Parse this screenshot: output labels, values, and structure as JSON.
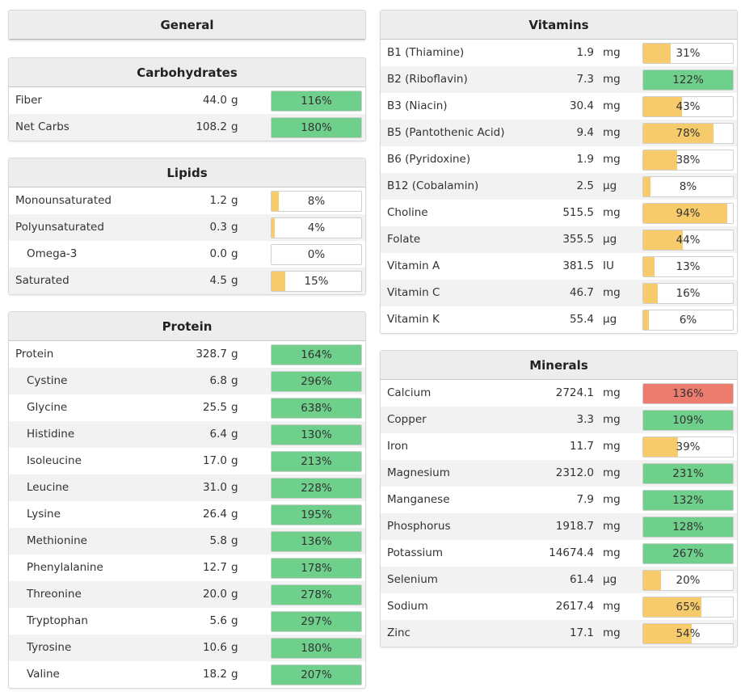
{
  "colors": {
    "green": "#6fd08c",
    "yellow": "#f7cb6b",
    "red": "#ec7c6e"
  },
  "general": {
    "title": "General"
  },
  "carbohydrates": {
    "title": "Carbohydrates",
    "rows": [
      {
        "name": "Fiber",
        "amount": "44.0",
        "unit": "g",
        "pct": "116%",
        "level": 1.0,
        "color": "green"
      },
      {
        "name": "Net Carbs",
        "amount": "108.2",
        "unit": "g",
        "pct": "180%",
        "level": 1.0,
        "color": "green"
      }
    ]
  },
  "lipids": {
    "title": "Lipids",
    "rows": [
      {
        "name": "Monounsaturated",
        "amount": "1.2",
        "unit": "g",
        "pct": "8%",
        "level": 0.08,
        "color": "yellow"
      },
      {
        "name": "Polyunsaturated",
        "amount": "0.3",
        "unit": "g",
        "pct": "4%",
        "level": 0.04,
        "color": "yellow"
      },
      {
        "name": "Omega-3",
        "amount": "0.0",
        "unit": "g",
        "pct": "0%",
        "level": 0.0,
        "color": "yellow",
        "indent": true
      },
      {
        "name": "Saturated",
        "amount": "4.5",
        "unit": "g",
        "pct": "15%",
        "level": 0.15,
        "color": "yellow"
      }
    ]
  },
  "protein": {
    "title": "Protein",
    "rows": [
      {
        "name": "Protein",
        "amount": "328.7",
        "unit": "g",
        "pct": "164%",
        "level": 1.0,
        "color": "green"
      },
      {
        "name": "Cystine",
        "amount": "6.8",
        "unit": "g",
        "pct": "296%",
        "level": 1.0,
        "color": "green",
        "indent": true
      },
      {
        "name": "Glycine",
        "amount": "25.5",
        "unit": "g",
        "pct": "638%",
        "level": 1.0,
        "color": "green",
        "indent": true
      },
      {
        "name": "Histidine",
        "amount": "6.4",
        "unit": "g",
        "pct": "130%",
        "level": 1.0,
        "color": "green",
        "indent": true
      },
      {
        "name": "Isoleucine",
        "amount": "17.0",
        "unit": "g",
        "pct": "213%",
        "level": 1.0,
        "color": "green",
        "indent": true
      },
      {
        "name": "Leucine",
        "amount": "31.0",
        "unit": "g",
        "pct": "228%",
        "level": 1.0,
        "color": "green",
        "indent": true
      },
      {
        "name": "Lysine",
        "amount": "26.4",
        "unit": "g",
        "pct": "195%",
        "level": 1.0,
        "color": "green",
        "indent": true
      },
      {
        "name": "Methionine",
        "amount": "5.8",
        "unit": "g",
        "pct": "136%",
        "level": 1.0,
        "color": "green",
        "indent": true
      },
      {
        "name": "Phenylalanine",
        "amount": "12.7",
        "unit": "g",
        "pct": "178%",
        "level": 1.0,
        "color": "green",
        "indent": true
      },
      {
        "name": "Threonine",
        "amount": "20.0",
        "unit": "g",
        "pct": "278%",
        "level": 1.0,
        "color": "green",
        "indent": true
      },
      {
        "name": "Tryptophan",
        "amount": "5.6",
        "unit": "g",
        "pct": "297%",
        "level": 1.0,
        "color": "green",
        "indent": true
      },
      {
        "name": "Tyrosine",
        "amount": "10.6",
        "unit": "g",
        "pct": "180%",
        "level": 1.0,
        "color": "green",
        "indent": true
      },
      {
        "name": "Valine",
        "amount": "18.2",
        "unit": "g",
        "pct": "207%",
        "level": 1.0,
        "color": "green",
        "indent": true
      }
    ]
  },
  "vitamins": {
    "title": "Vitamins",
    "rows": [
      {
        "name": "B1 (Thiamine)",
        "amount": "1.9",
        "unit": "mg",
        "pct": "31%",
        "level": 0.31,
        "color": "yellow"
      },
      {
        "name": "B2 (Riboflavin)",
        "amount": "7.3",
        "unit": "mg",
        "pct": "122%",
        "level": 1.0,
        "color": "green"
      },
      {
        "name": "B3 (Niacin)",
        "amount": "30.4",
        "unit": "mg",
        "pct": "43%",
        "level": 0.43,
        "color": "yellow"
      },
      {
        "name": "B5 (Pantothenic Acid)",
        "amount": "9.4",
        "unit": "mg",
        "pct": "78%",
        "level": 0.78,
        "color": "yellow"
      },
      {
        "name": "B6 (Pyridoxine)",
        "amount": "1.9",
        "unit": "mg",
        "pct": "38%",
        "level": 0.38,
        "color": "yellow"
      },
      {
        "name": "B12 (Cobalamin)",
        "amount": "2.5",
        "unit": "µg",
        "pct": "8%",
        "level": 0.08,
        "color": "yellow"
      },
      {
        "name": "Choline",
        "amount": "515.5",
        "unit": "mg",
        "pct": "94%",
        "level": 0.94,
        "color": "yellow"
      },
      {
        "name": "Folate",
        "amount": "355.5",
        "unit": "µg",
        "pct": "44%",
        "level": 0.44,
        "color": "yellow"
      },
      {
        "name": "Vitamin A",
        "amount": "381.5",
        "unit": "IU",
        "pct": "13%",
        "level": 0.13,
        "color": "yellow"
      },
      {
        "name": "Vitamin C",
        "amount": "46.7",
        "unit": "mg",
        "pct": "16%",
        "level": 0.16,
        "color": "yellow"
      },
      {
        "name": "Vitamin K",
        "amount": "55.4",
        "unit": "µg",
        "pct": "6%",
        "level": 0.06,
        "color": "yellow"
      }
    ]
  },
  "minerals": {
    "title": "Minerals",
    "rows": [
      {
        "name": "Calcium",
        "amount": "2724.1",
        "unit": "mg",
        "pct": "136%",
        "level": 1.0,
        "color": "red"
      },
      {
        "name": "Copper",
        "amount": "3.3",
        "unit": "mg",
        "pct": "109%",
        "level": 1.0,
        "color": "green"
      },
      {
        "name": "Iron",
        "amount": "11.7",
        "unit": "mg",
        "pct": "39%",
        "level": 0.39,
        "color": "yellow"
      },
      {
        "name": "Magnesium",
        "amount": "2312.0",
        "unit": "mg",
        "pct": "231%",
        "level": 1.0,
        "color": "green"
      },
      {
        "name": "Manganese",
        "amount": "7.9",
        "unit": "mg",
        "pct": "132%",
        "level": 1.0,
        "color": "green"
      },
      {
        "name": "Phosphorus",
        "amount": "1918.7",
        "unit": "mg",
        "pct": "128%",
        "level": 1.0,
        "color": "green"
      },
      {
        "name": "Potassium",
        "amount": "14674.4",
        "unit": "mg",
        "pct": "267%",
        "level": 1.0,
        "color": "green"
      },
      {
        "name": "Selenium",
        "amount": "61.4",
        "unit": "µg",
        "pct": "20%",
        "level": 0.2,
        "color": "yellow"
      },
      {
        "name": "Sodium",
        "amount": "2617.4",
        "unit": "mg",
        "pct": "65%",
        "level": 0.65,
        "color": "yellow"
      },
      {
        "name": "Zinc",
        "amount": "17.1",
        "unit": "mg",
        "pct": "54%",
        "level": 0.54,
        "color": "yellow"
      }
    ]
  }
}
